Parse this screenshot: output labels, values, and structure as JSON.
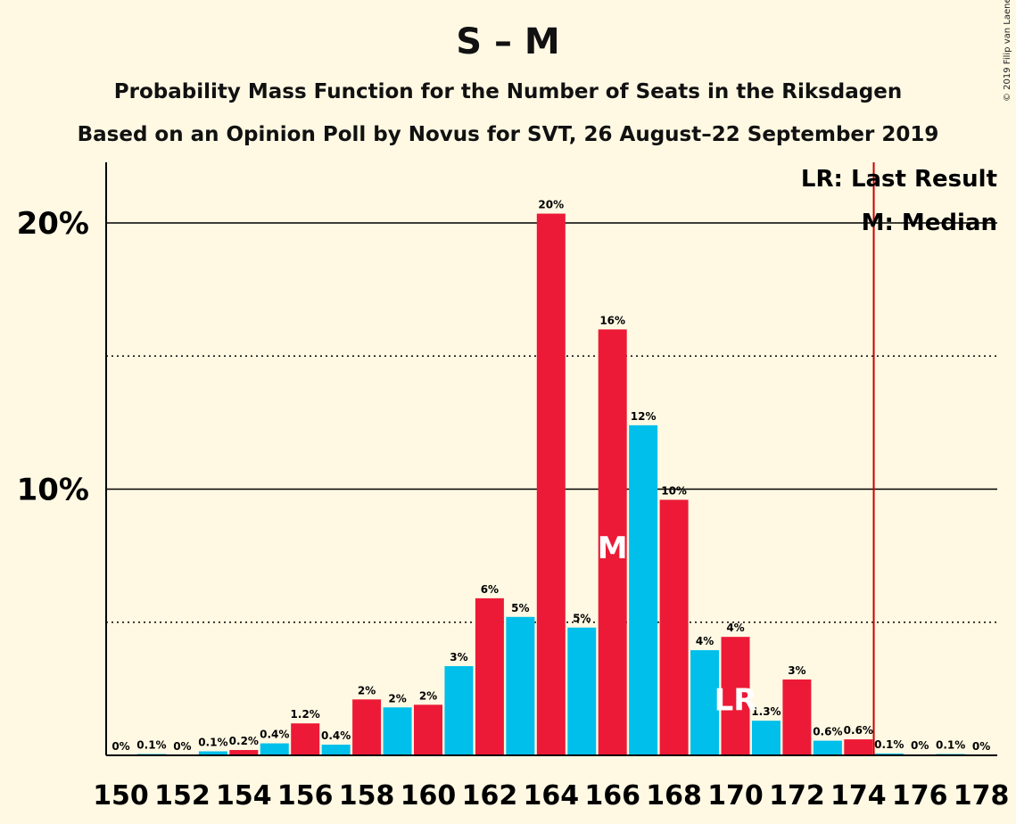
{
  "title": "S – M",
  "subtitle": "Probability Mass Function for the Number of Seats in the Riksdagen",
  "subtitle2": "Based on an Opinion Poll by Novus for SVT, 26 August–22 September 2019",
  "copyright": "© 2019 Filip van Laenen",
  "colors": {
    "background": "#FFF9E3",
    "blue": "#00BFEA",
    "red": "#EC1A36",
    "last_result_line": "#CC0000"
  },
  "chart_data": {
    "type": "bar",
    "x": [
      150,
      151,
      152,
      153,
      154,
      155,
      156,
      157,
      158,
      159,
      160,
      161,
      162,
      163,
      164,
      165,
      166,
      167,
      168,
      169,
      170,
      171,
      172,
      173,
      174,
      175,
      176,
      177,
      178
    ],
    "values": [
      0,
      0.05,
      0,
      0.15,
      0.2,
      0.45,
      1.2,
      0.4,
      2.1,
      1.8,
      1.9,
      3.35,
      5.9,
      5.2,
      20.35,
      4.8,
      16,
      12.4,
      9.6,
      3.95,
      4.45,
      1.3,
      2.85,
      0.55,
      0.6,
      0.07,
      0.03,
      0.05,
      0
    ],
    "data_labels": [
      "0%",
      "0.1%",
      "0%",
      "0.1%",
      "0.2%",
      "0.4%",
      "1.2%",
      "0.4%",
      "2%",
      "2%",
      "2%",
      "3%",
      "6%",
      "5%",
      "20%",
      "5%",
      "16%",
      "12%",
      "10%",
      "4%",
      "4%",
      "1.3%",
      "3%",
      "0.6%",
      "0.6%",
      "0.1%",
      "0%",
      "0.1%",
      "0%"
    ],
    "bar_colors": [
      "blue",
      "blue",
      "blue",
      "blue",
      "red",
      "blue",
      "red",
      "blue",
      "red",
      "blue",
      "red",
      "blue",
      "red",
      "blue",
      "red",
      "blue",
      "red",
      "blue",
      "red",
      "blue",
      "red",
      "blue",
      "red",
      "blue",
      "red",
      "blue",
      "red",
      "blue",
      "red"
    ],
    "x_tick_labels": [
      "150",
      "152",
      "154",
      "156",
      "158",
      "160",
      "162",
      "164",
      "166",
      "168",
      "170",
      "172",
      "174",
      "176",
      "178"
    ],
    "y_tick_labels": [
      "10%",
      "20%"
    ],
    "ylim": [
      0,
      22
    ],
    "solid_gridlines": [
      10,
      20
    ],
    "dotted_gridlines": [
      5,
      15
    ],
    "median_seat": 166,
    "median_marker": "M",
    "last_result_seat": 170,
    "last_result_marker": "LR",
    "majority_line_after_seat": 174,
    "legend": {
      "position": "top-right",
      "lr": "LR: Last Result",
      "m": "M: Median"
    }
  }
}
